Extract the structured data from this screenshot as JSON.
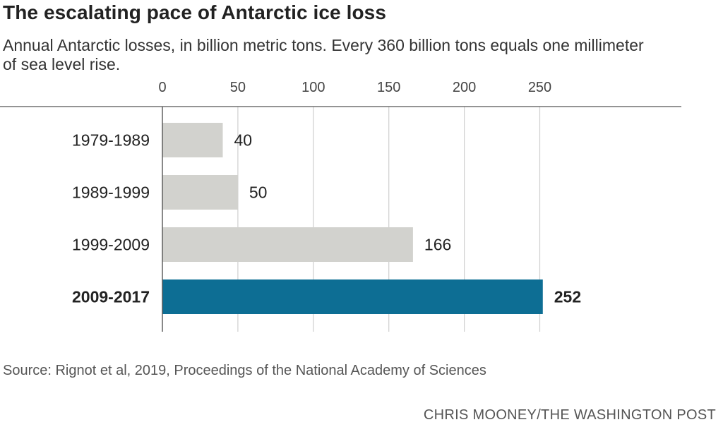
{
  "title": "The escalating pace of Antarctic ice loss",
  "subtitle": "Annual Antarctic losses, in billion metric tons. Every 360 billion tons equals one millimeter of sea level rise.",
  "source": "Source: Rignot et al, 2019, Proceedings of the National Academy of Sciences",
  "credit": "CHRIS MOONEY/THE WASHINGTON POST",
  "colors": {
    "bar_default": "#d2d2ce",
    "bar_highlight": "#0d6e94",
    "grid": "#cfcfcf",
    "axis": "#555555",
    "text": "#222222"
  },
  "chart_data": {
    "type": "bar",
    "orientation": "horizontal",
    "categories": [
      "1979-1989",
      "1989-1999",
      "1999-2009",
      "2009-2017"
    ],
    "values": [
      40,
      50,
      166,
      252
    ],
    "highlight": "2009-2017",
    "xticks": [
      0,
      50,
      100,
      150,
      200,
      250
    ],
    "xlim": [
      0,
      260
    ],
    "grid": true,
    "xaxis_position": "top"
  }
}
